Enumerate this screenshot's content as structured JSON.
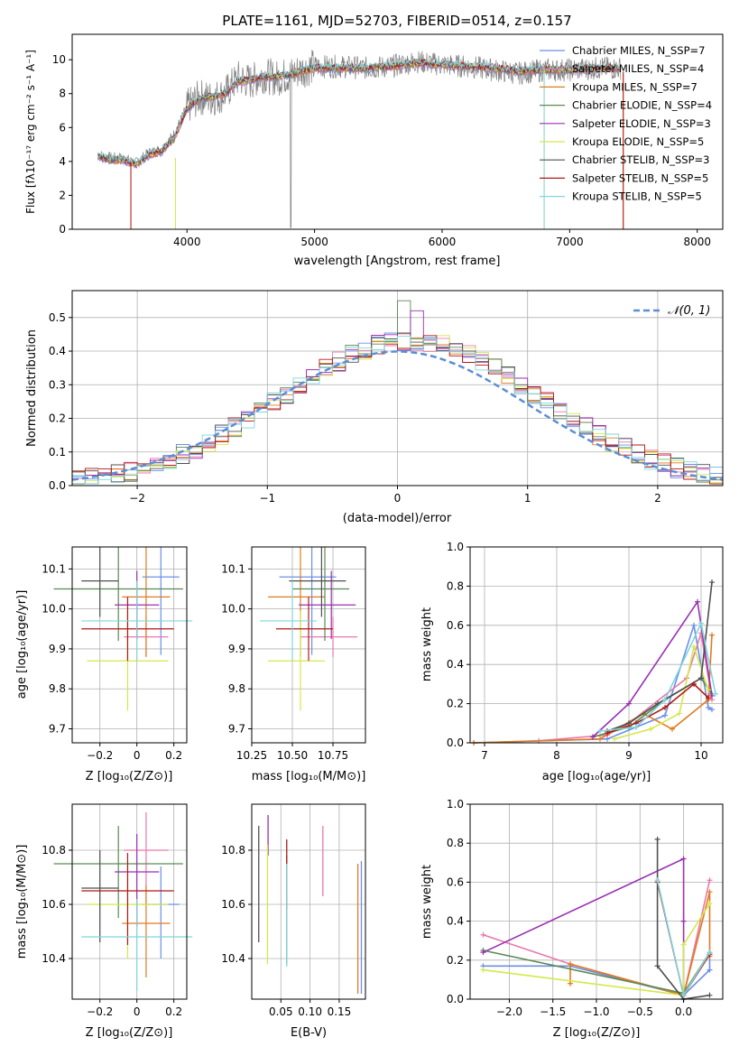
{
  "figure": {
    "title": "PLATE=1161, MJD=52703, FIBERID=0514, z=0.157"
  },
  "chart_data": [
    {
      "id": "spectrum",
      "type": "line",
      "xlabel": "wavelength [Angstrom, rest frame]",
      "ylabel": "Flux [fλ10⁻¹⁷ erg cm⁻² s⁻¹ A⁻¹]",
      "xlim": [
        3100,
        8200
      ],
      "ylim": [
        0,
        11.5
      ],
      "xticks": [
        4000,
        5000,
        6000,
        7000,
        8000
      ],
      "yticks": [
        0,
        2,
        4,
        6,
        8,
        10
      ],
      "legend_position": "right",
      "legend": [
        {
          "label": "Chabrier MILES, N_SSP=7",
          "color": "#6b8fe8"
        },
        {
          "label": "Salpeter MILES, N_SSP=4",
          "color": "#e879a8"
        },
        {
          "label": "Kroupa MILES, N_SSP=7",
          "color": "#e07b20"
        },
        {
          "label": "Chabrier ELODIE, N_SSP=4",
          "color": "#5a8a55"
        },
        {
          "label": "Salpeter ELODIE, N_SSP=3",
          "color": "#9a2fb3"
        },
        {
          "label": "Kroupa ELODIE, N_SSP=5",
          "color": "#d4e84a"
        },
        {
          "label": "Chabrier STELIB, N_SSP=3",
          "color": "#505050"
        },
        {
          "label": "Salpeter STELIB, N_SSP=5",
          "color": "#b01818"
        },
        {
          "label": "Kroupa STELIB, N_SSP=5",
          "color": "#7fd6dd"
        }
      ],
      "data_series": {
        "name": "data",
        "color": "#808080",
        "x": [
          3300,
          3400,
          3500,
          3600,
          3700,
          3800,
          3900,
          4000,
          4100,
          4200,
          4300,
          4400,
          4500,
          4600,
          4700,
          4800,
          4900,
          5000,
          5200,
          5400,
          5600,
          5800,
          6000,
          6200,
          6400,
          6600,
          6800,
          7000,
          7200,
          7400
        ],
        "y": [
          4.4,
          4.2,
          4.2,
          3.9,
          4.5,
          4.7,
          5.6,
          7.2,
          7.8,
          7.7,
          8.0,
          8.9,
          8.7,
          9.1,
          8.9,
          9.1,
          9.4,
          9.6,
          9.6,
          9.5,
          9.6,
          9.9,
          9.7,
          9.6,
          9.4,
          9.2,
          9.4,
          9.4,
          9.5,
          9.5
        ]
      },
      "model_curve": {
        "x": [
          3300,
          3400,
          3500,
          3600,
          3700,
          3800,
          3900,
          4000,
          4100,
          4200,
          4300,
          4400,
          4500,
          4600,
          4700,
          4800,
          4900,
          5000,
          5200,
          5400,
          5600,
          5800,
          6000,
          6200,
          6400,
          6600,
          6800,
          7000,
          7200,
          7400
        ],
        "y": [
          4.3,
          4.1,
          4.1,
          3.8,
          4.4,
          4.6,
          5.4,
          7.1,
          7.7,
          7.8,
          8.0,
          8.7,
          8.8,
          9.0,
          9.0,
          9.1,
          9.3,
          9.5,
          9.5,
          9.5,
          9.6,
          9.8,
          9.7,
          9.6,
          9.5,
          9.3,
          9.4,
          9.4,
          9.5,
          9.5
        ]
      }
    },
    {
      "id": "residuals",
      "type": "line",
      "xlabel": "(data-model)/error",
      "ylabel": "Normed distribution",
      "xlim": [
        -2.5,
        2.5
      ],
      "ylim": [
        0,
        0.58
      ],
      "xticks": [
        -2,
        -1,
        0,
        1,
        2
      ],
      "yticks": [
        0.0,
        0.1,
        0.2,
        0.3,
        0.4,
        0.5
      ],
      "grid": true,
      "legend_position": "top-right",
      "reference_curve": {
        "label": "𝒩(0, 1)",
        "color": "#5b8ed6",
        "style": "dashed",
        "mean": 0,
        "std": 1
      },
      "histogram": {
        "bin_width": 0.1,
        "range": [
          -2.5,
          2.5
        ],
        "base_shape": "gaussian-like, peak ~0.45 at 0.1",
        "highlight_bins": [
          {
            "x": 0.0,
            "y": 0.55
          },
          {
            "x": 0.1,
            "y": 0.52
          }
        ]
      }
    },
    {
      "id": "age-vs-Z",
      "type": "scatter",
      "xlabel": "Z [log₁₀(Z/Z⊙)]",
      "ylabel": "age  [log₁₀(age/yr)]",
      "xlim": [
        -0.35,
        0.27
      ],
      "ylim": [
        9.665,
        10.155
      ],
      "xticks": [
        -0.2,
        0.0,
        0.2
      ],
      "yticks": [
        9.7,
        9.8,
        9.9,
        10.0,
        10.1
      ],
      "grid": true,
      "points": [
        {
          "x": 0.13,
          "y": 10.08,
          "xerr": 0.1,
          "yerr": 0.39,
          "color": "#6b8fe8"
        },
        {
          "x": 0.05,
          "y": 9.93,
          "xerr": 0.12,
          "yerr": 0.1,
          "color": "#e879a8"
        },
        {
          "x": 0.05,
          "y": 10.03,
          "xerr": 0.13,
          "yerr": 0.3,
          "color": "#e07b20"
        },
        {
          "x": -0.1,
          "y": 10.05,
          "xerr": 0.35,
          "yerr": 0.26,
          "color": "#5a8a55"
        },
        {
          "x": 0.0,
          "y": 10.01,
          "xerr": 0.12,
          "yerr": 0.17,
          "color": "#9a2fb3"
        },
        {
          "x": -0.05,
          "y": 9.87,
          "xerr": 0.22,
          "yerr": 0.25,
          "color": "#d4e84a"
        },
        {
          "x": -0.2,
          "y": 10.07,
          "xerr": 0.1,
          "yerr": 0.18,
          "color": "#505050"
        },
        {
          "x": -0.05,
          "y": 9.95,
          "xerr": 0.25,
          "yerr": 0.16,
          "color": "#b01818"
        },
        {
          "x": 0.0,
          "y": 9.97,
          "xerr": 0.3,
          "yerr": 0.2,
          "color": "#7fd6dd"
        }
      ]
    },
    {
      "id": "age-vs-mass",
      "type": "scatter",
      "xlabel": "mass [log₁₀(M/M⊙)]",
      "ylabel": "",
      "xlim": [
        10.25,
        10.95
      ],
      "ylim": [
        9.665,
        10.155
      ],
      "xticks": [
        10.25,
        10.5,
        10.75
      ],
      "xticklabels": [
        "10.25",
        "10.50",
        "10.75"
      ],
      "yticks": [
        9.7,
        9.8,
        9.9,
        10.0,
        10.1
      ],
      "grid": true
    },
    {
      "id": "massweight-vs-age",
      "type": "line",
      "xlabel": "age  [log₁₀(age/yr)]",
      "ylabel": "mass weight",
      "xlim": [
        6.8,
        10.3
      ],
      "ylim": [
        0,
        1.0
      ],
      "xticks": [
        7,
        8,
        9,
        10
      ],
      "yticks": [
        0.0,
        0.2,
        0.4,
        0.6,
        0.8,
        1.0
      ],
      "grid": true,
      "series": [
        {
          "color": "#6b8fe8",
          "x": [
            6.85,
            8.7,
            9.1,
            9.5,
            9.9,
            10.1,
            10.15
          ],
          "y": [
            0.0,
            0.02,
            0.08,
            0.14,
            0.6,
            0.18,
            0.17
          ]
        },
        {
          "color": "#e879a8",
          "x": [
            7.75,
            8.7,
            9.0,
            9.8,
            10.0,
            10.15
          ],
          "y": [
            0.01,
            0.04,
            0.1,
            0.33,
            0.56,
            0.22
          ]
        },
        {
          "color": "#e07b20",
          "x": [
            6.85,
            8.6,
            9.2,
            9.6,
            10.1,
            10.15
          ],
          "y": [
            0.0,
            0.02,
            0.15,
            0.07,
            0.22,
            0.55
          ]
        },
        {
          "color": "#5a8a55",
          "x": [
            8.5,
            9.0,
            9.5,
            10.0,
            10.15
          ],
          "y": [
            0.03,
            0.08,
            0.22,
            0.33,
            0.25
          ]
        },
        {
          "color": "#9a2fb3",
          "x": [
            8.5,
            9.0,
            9.95,
            10.15
          ],
          "y": [
            0.03,
            0.2,
            0.72,
            0.24
          ]
        },
        {
          "color": "#d4e84a",
          "x": [
            8.8,
            9.3,
            9.7,
            9.9,
            10.1
          ],
          "y": [
            0.02,
            0.07,
            0.15,
            0.49,
            0.27
          ]
        },
        {
          "color": "#505050",
          "x": [
            8.7,
            9.0,
            9.4,
            10.0,
            10.15
          ],
          "y": [
            0.06,
            0.1,
            0.2,
            0.33,
            0.82
          ]
        },
        {
          "color": "#b01818",
          "x": [
            8.7,
            9.1,
            9.5,
            9.9,
            10.1
          ],
          "y": [
            0.05,
            0.1,
            0.18,
            0.3,
            0.23
          ]
        },
        {
          "color": "#7fd6dd",
          "x": [
            8.6,
            9.1,
            9.5,
            10.0,
            10.2
          ],
          "y": [
            0.06,
            0.08,
            0.22,
            0.61,
            0.25
          ]
        }
      ]
    },
    {
      "id": "mass-vs-Z",
      "type": "scatter",
      "xlabel": "Z [log₁₀(Z/Z⊙)]",
      "ylabel": "mass [log₁₀(M/M⊙)]",
      "xlim": [
        -0.35,
        0.27
      ],
      "ylim": [
        10.25,
        10.97
      ],
      "xticks": [
        -0.2,
        0.0,
        0.2
      ],
      "yticks": [
        10.4,
        10.6,
        10.8
      ],
      "grid": true
    },
    {
      "id": "mass-vs-ebv",
      "type": "scatter",
      "xlabel": "E(B-V)",
      "ylabel": "",
      "xlim": [
        0.0,
        0.195
      ],
      "ylim": [
        10.25,
        10.97
      ],
      "xticks": [
        0.05,
        0.1,
        0.15
      ],
      "xticklabels": [
        "0.05",
        "0.10",
        "0.15"
      ],
      "yticks": [
        10.4,
        10.6,
        10.8
      ],
      "grid": true
    },
    {
      "id": "massweight-vs-Z",
      "type": "line",
      "xlabel": "Z [log₁₀(Z/Z⊙)]",
      "ylabel": "mass weight",
      "xlim": [
        -2.45,
        0.45
      ],
      "ylim": [
        0,
        1.0
      ],
      "xticks": [
        -2.0,
        -1.5,
        -1.0,
        -0.5,
        0.0
      ],
      "yticks": [
        0.0,
        0.2,
        0.4,
        0.6,
        0.8,
        1.0
      ],
      "grid": true,
      "series": [
        {
          "color": "#6b8fe8",
          "x": [
            -2.3,
            -1.3,
            0.0,
            0.3,
            0.3
          ],
          "y": [
            0.17,
            0.17,
            0.02,
            0.15,
            0.24
          ]
        },
        {
          "color": "#e879a8",
          "x": [
            -2.3,
            -1.3,
            0.0,
            0.3
          ],
          "y": [
            0.33,
            0.18,
            0.02,
            0.61
          ]
        },
        {
          "color": "#e07b20",
          "x": [
            -1.3,
            -1.3,
            0.0,
            0.3,
            0.3
          ],
          "y": [
            0.08,
            0.18,
            0.02,
            0.55,
            0.22
          ]
        },
        {
          "color": "#5a8a55",
          "x": [
            -2.3,
            0.0,
            0.3
          ],
          "y": [
            0.25,
            0.03,
            0.24
          ]
        },
        {
          "color": "#9a2fb3",
          "x": [
            -2.3,
            0.0,
            0.0,
            0.0
          ],
          "y": [
            0.24,
            0.72,
            0.4,
            0.0
          ]
        },
        {
          "color": "#d4e84a",
          "x": [
            -2.3,
            0.0,
            0.0,
            0.3
          ],
          "y": [
            0.15,
            0.02,
            0.28,
            0.49
          ]
        },
        {
          "color": "#505050",
          "x": [
            -0.3,
            -0.3,
            0.0,
            0.3
          ],
          "y": [
            0.82,
            0.17,
            0.0,
            0.02
          ]
        },
        {
          "color": "#b01818",
          "x": [
            -0.3,
            0.0,
            0.3
          ],
          "y": [
            0.6,
            0.02,
            0.23
          ]
        },
        {
          "color": "#7fd6dd",
          "x": [
            -0.3,
            0.0,
            0.3
          ],
          "y": [
            0.61,
            0.02,
            0.24
          ]
        }
      ]
    }
  ]
}
